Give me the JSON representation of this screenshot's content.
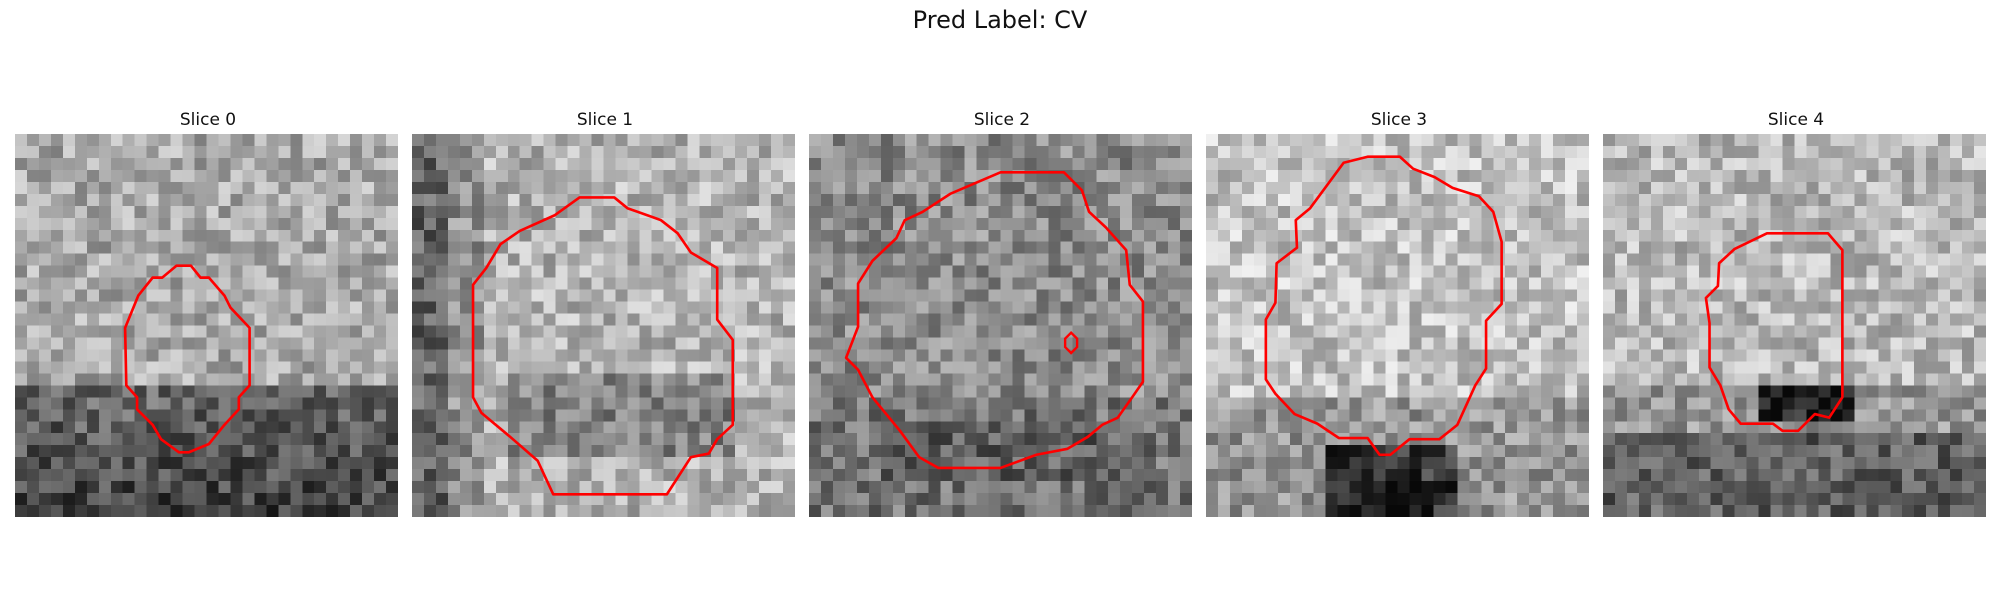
{
  "figure": {
    "title": "Pred Label: CV"
  },
  "slices": [
    {
      "title": "Slice 0"
    },
    {
      "title": "Slice 1"
    },
    {
      "title": "Slice 2"
    },
    {
      "title": "Slice 3"
    },
    {
      "title": "Slice 4"
    }
  ],
  "colors": {
    "contour": "#ff0000",
    "background": "#ffffff"
  }
}
